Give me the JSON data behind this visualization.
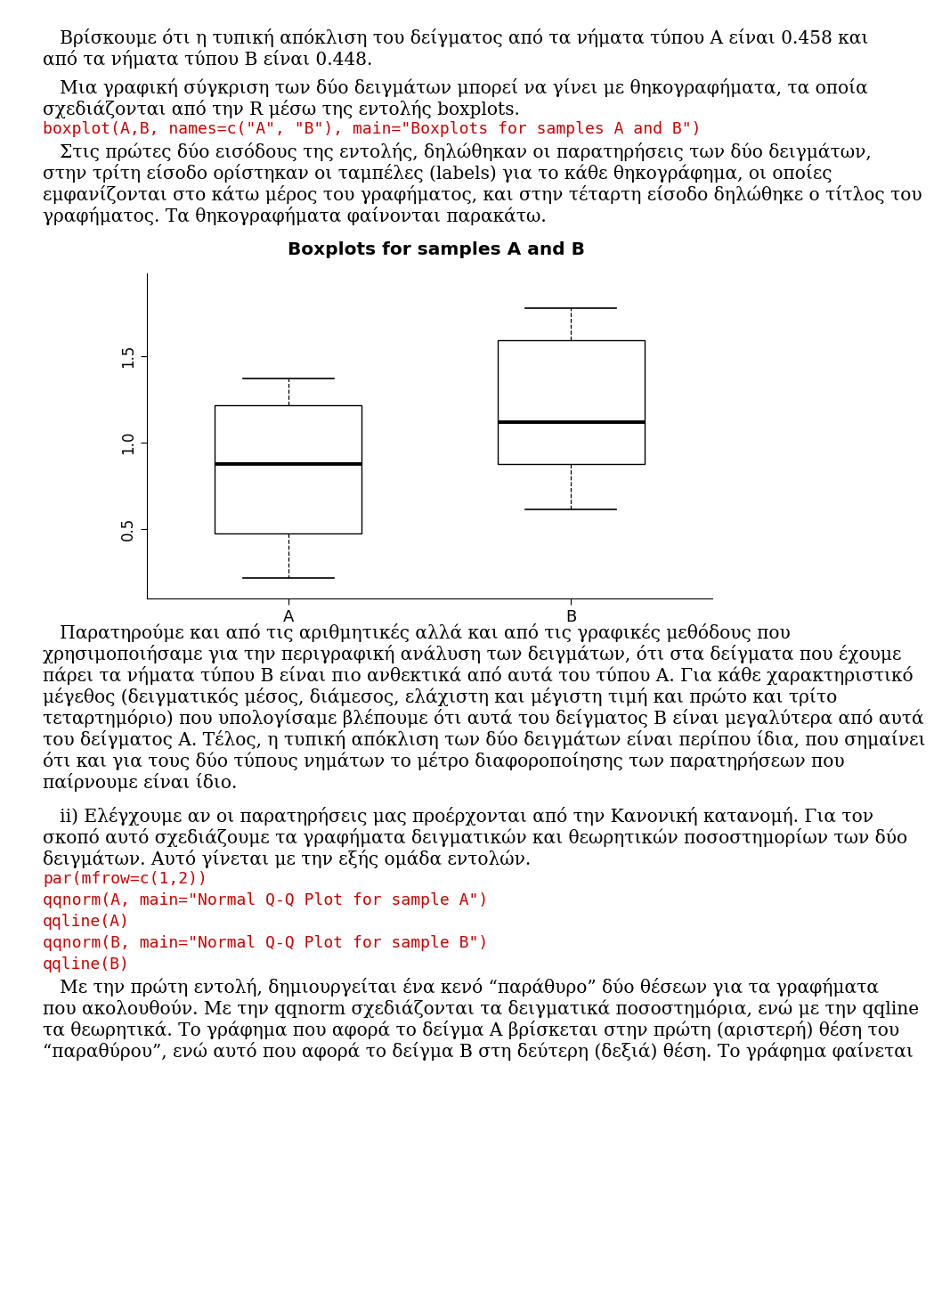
{
  "title": "Boxplots for samples A and B",
  "box_A": {
    "whisker_low": 0.215,
    "q1": 0.475,
    "median": 0.875,
    "q3": 1.215,
    "whisker_high": 1.37
  },
  "box_B": {
    "whisker_low": 0.615,
    "q1": 0.875,
    "median": 1.12,
    "q3": 1.595,
    "whisker_high": 1.78
  },
  "ylim": [
    0.1,
    1.98
  ],
  "yticks": [
    0.5,
    1.0,
    1.5
  ],
  "xlabel_A": "A",
  "xlabel_B": "B",
  "box_color": "#ffffff",
  "box_edge_color": "#000000",
  "median_color": "#000000",
  "whisker_color": "#000000",
  "cap_color": "#000000",
  "background_color": "#ffffff",
  "text_color": "#000000",
  "code_color": "#cc0000",
  "para1_line1": "   Βρίσκουμε ότι η τυπική απόκλιση του δείγματος από τα νήματα τύπου Α είναι 0.458 και",
  "para1_line2": "από τα νήματα τύπου Β είναι 0.448.",
  "para2_line1": "   Μια γραφική σύγκριση των δύο δειγμάτων μπορεί να γίνει με θηκογραφήματα, τα οποία",
  "para2_line2": "σχεδιάζονται από την R μέσω της εντολής boxplots.",
  "code_line": "boxplot(A,B, names=c(\"A\", \"B\"), main=\"Boxplots for samples A and B\")",
  "para3_line1": "   Στις πρώτες δύο εισόδους της εντολής, δηλώθηκαν οι παρατηρήσεις των δύο δειγμάτων,",
  "para3_line2": "στην τρίτη είσοδο ορίστηκαν οι ταμπέλες (labels) για το κάθε θηκογράφημα, οι οποίες",
  "para3_line3": "εμφανίζονται στο κάτω μέρος του γραφήματος, και στην τέταρτη είσοδο δηλώθηκε ο τίτλος του",
  "para3_line4": "γραφήματος. Τα θηκογραφήματα φαίνονται παρακάτω.",
  "para4_line1": "   Παρατηρούμε και από τις αριθμητικές αλλά και από τις γραφικές μεθόδους που",
  "para4_line2": "χρησιμοποιήσαμε για την περιγραφική ανάλυση των δειγμάτων, ότι στα δείγματα που έχουμε",
  "para4_line3": "πάρει τα νήματα τύπου Β είναι πιο ανθεκτικά από αυτά του τύπου Α. Για κάθε χαρακτηριστικό",
  "para4_line4": "μέγεθος (δειγματικός μέσος, διάμεσος, ελάχιστη και μέγιστη τιμή και πρώτο και τρίτο",
  "para4_line5": "τεταρτημόριο) που υπολογίσαμε βλέπουμε ότι αυτά του δείγματος Β είναι μεγαλύτερα από αυτά",
  "para4_line6": "του δείγματος Α. Τέλος, η τυπική απόκλιση των δύο δειγμάτων είναι περίπου ίδια, που σημαίνει",
  "para4_line7": "ότι και για τους δύο τύπους νημάτων το μέτρο διαφοροποίησης των παρατηρήσεων που",
  "para4_line8": "παίρνουμε είναι ίδιο.",
  "para5_line1": "   ii) Ελέγχουμε αν οι παρατηρήσεις μας προέρχονται από την Κανονική κατανομή. Για τον",
  "para5_line2": "σκοπό αυτό σχεδιάζουμε τα γραφήματα δειγματικών και θεωρητικών ποσοστημορίων των δύο",
  "para5_line3": "δειγμάτων. Αυτό γίνεται με την εξής ομάδα εντολών.",
  "code2_line1": "par(mfrow=c(1,2))",
  "code2_line2": "qqnorm(A, main=\"Normal Q-Q Plot for sample A\")",
  "code2_line3": "qqline(A)",
  "code2_line4": "qqnorm(B, main=\"Normal Q-Q Plot for sample B\")",
  "code2_line5": "qqline(B)",
  "para6_line1": "   Με την πρώτη εντολή, δημιουργείται ένα κενό “παράθυρο” δύο θέσεων για τα γραφήματα",
  "para6_line2": "που ακολουθούν. Με την qqnorm σχεδιάζονται τα δειγματικά ποσοστημόρια, ενώ με την qqline",
  "para6_line3": "τα θεωρητικά. Το γράφημα που αφορά το δείγμα Α βρίσκεται στην πρώτη (αριστερή) θέση του",
  "para6_line4": "“παραθύρου”, ενώ αυτό που αφορά το δείγμα Β στη δεύτερη (δεξιά) θέση. Το γράφημα φαίνεται"
}
